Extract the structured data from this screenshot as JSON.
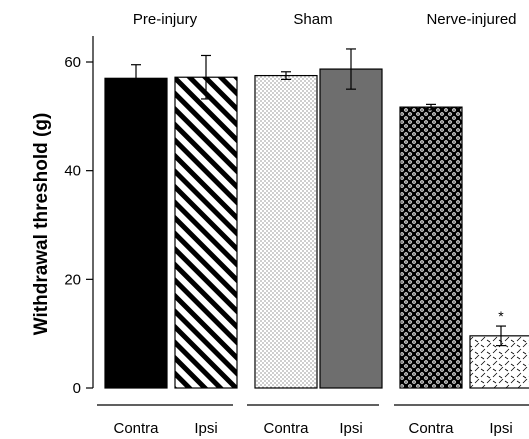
{
  "chart_data": {
    "type": "bar",
    "title": "",
    "xlabel": "",
    "ylabel": "Withdrawal threshold (g)",
    "ylim": [
      0,
      65
    ],
    "yticks": [
      "0",
      "20",
      "40",
      "60"
    ],
    "grid": false,
    "groups": [
      {
        "name": "Pre-injury",
        "bars": [
          {
            "category": "Contra",
            "value": 57.0,
            "error": 2.5,
            "pattern": "solid-black"
          },
          {
            "category": "Ipsi",
            "value": 57.2,
            "error": 4.0,
            "pattern": "diagonal-stripes"
          }
        ]
      },
      {
        "name": "Sham",
        "bars": [
          {
            "category": "Contra",
            "value": 57.5,
            "error": 0.7,
            "pattern": "light-dots"
          },
          {
            "category": "Ipsi",
            "value": 58.7,
            "error": 3.7,
            "pattern": "solid-gray"
          }
        ]
      },
      {
        "name": "Nerve-injured",
        "bars": [
          {
            "category": "Contra",
            "value": 51.7,
            "error": 0.5,
            "pattern": "checker-circles"
          },
          {
            "category": "Ipsi",
            "value": 9.6,
            "error": 1.8,
            "pattern": "dashed-hatch",
            "annotation": "*"
          }
        ]
      }
    ],
    "colors": {
      "solid-black": "#000000",
      "solid-gray": "#6e6e6e",
      "stroke": "#000000"
    }
  }
}
